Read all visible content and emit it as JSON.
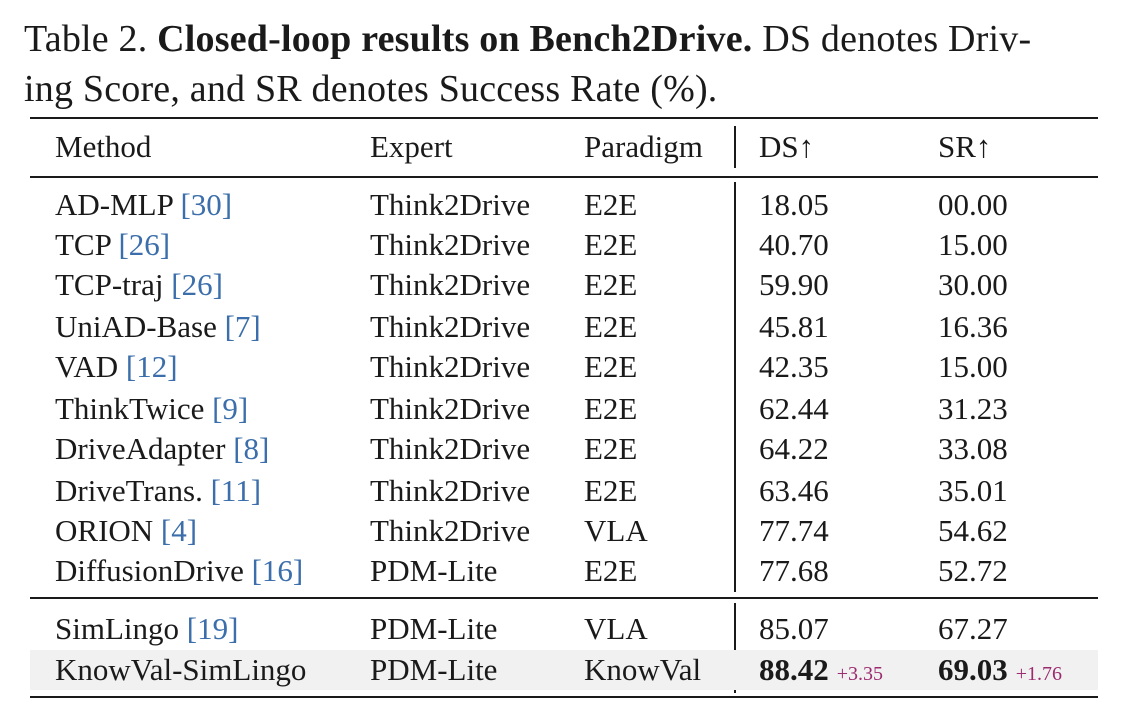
{
  "caption": {
    "label": "Table 2.",
    "title": "Closed-loop results on Bench2Drive.",
    "line1_rest": "DS denotes Driv-",
    "line2": "ing Score, and SR denotes Success Rate (%)."
  },
  "table": {
    "headers": {
      "method": "Method",
      "expert": "Expert",
      "paradigm": "Paradigm",
      "ds": "DS↑",
      "sr": "SR↑"
    },
    "rows": [
      {
        "method": "AD-MLP",
        "cite": "[30]",
        "expert": "Think2Drive",
        "paradigm": "E2E",
        "ds": "18.05",
        "sr": "00.00"
      },
      {
        "method": "TCP",
        "cite": "[26]",
        "expert": "Think2Drive",
        "paradigm": "E2E",
        "ds": "40.70",
        "sr": "15.00"
      },
      {
        "method": "TCP-traj",
        "cite": "[26]",
        "expert": "Think2Drive",
        "paradigm": "E2E",
        "ds": "59.90",
        "sr": "30.00"
      },
      {
        "method": "UniAD-Base",
        "cite": "[7]",
        "expert": "Think2Drive",
        "paradigm": "E2E",
        "ds": "45.81",
        "sr": "16.36"
      },
      {
        "method": "VAD",
        "cite": "[12]",
        "expert": "Think2Drive",
        "paradigm": "E2E",
        "ds": "42.35",
        "sr": "15.00"
      },
      {
        "method": "ThinkTwice",
        "cite": "[9]",
        "expert": "Think2Drive",
        "paradigm": "E2E",
        "ds": "62.44",
        "sr": "31.23"
      },
      {
        "method": "DriveAdapter",
        "cite": "[8]",
        "expert": "Think2Drive",
        "paradigm": "E2E",
        "ds": "64.22",
        "sr": "33.08"
      },
      {
        "method": "DriveTrans.",
        "cite": "[11]",
        "expert": "Think2Drive",
        "paradigm": "E2E",
        "ds": "63.46",
        "sr": "35.01"
      },
      {
        "method": "ORION",
        "cite": "[4]",
        "expert": "Think2Drive",
        "paradigm": "VLA",
        "ds": "77.74",
        "sr": "54.62"
      },
      {
        "method": "DiffusionDrive",
        "cite": "[16]",
        "expert": "PDM-Lite",
        "paradigm": "E2E",
        "ds": "77.68",
        "sr": "52.72"
      },
      {
        "method": "SimLingo",
        "cite": "[19]",
        "expert": "PDM-Lite",
        "paradigm": "VLA",
        "ds": "85.07",
        "sr": "67.27"
      },
      {
        "method": "KnowVal-SimLingo",
        "cite": "",
        "expert": "PDM-Lite",
        "paradigm": "KnowVal",
        "ds": "88.42",
        "ds_delta": "+3.35",
        "sr": "69.03",
        "sr_delta": "+1.76"
      }
    ]
  }
}
